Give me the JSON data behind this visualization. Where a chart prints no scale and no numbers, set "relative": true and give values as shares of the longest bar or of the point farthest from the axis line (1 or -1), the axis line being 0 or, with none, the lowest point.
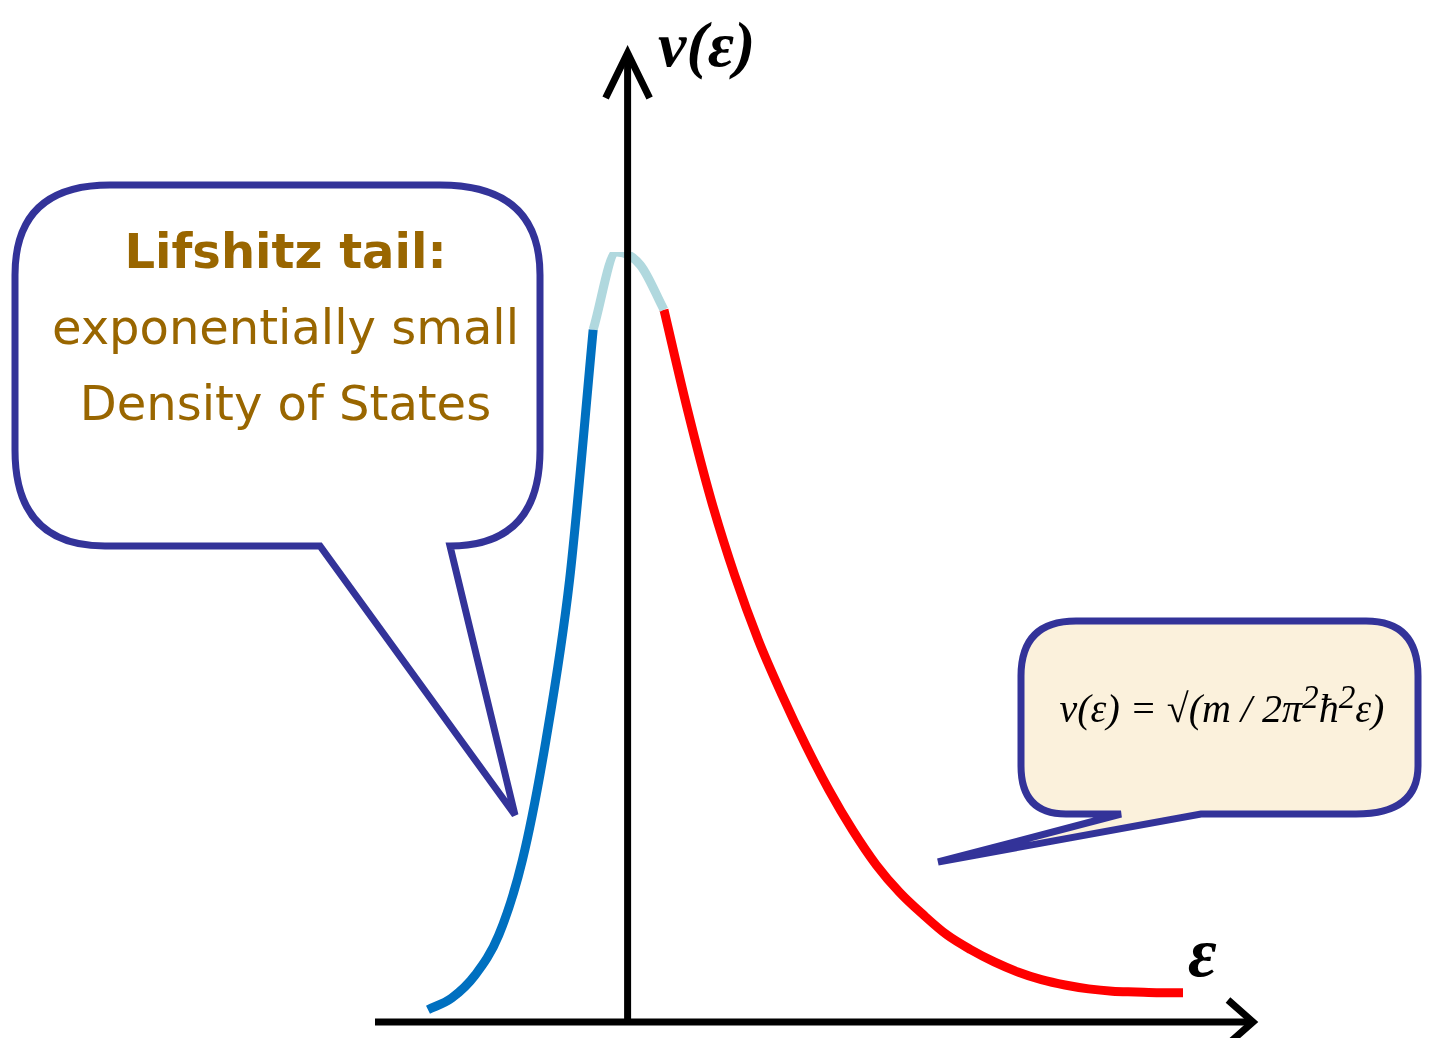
{
  "chart_data": {
    "type": "line",
    "relative": true,
    "xlabel": "ε",
    "ylabel": "ν(ε)",
    "categories": [
      null,
      null,
      null,
      null,
      null,
      null,
      null,
      null,
      null,
      null,
      null,
      null,
      null,
      null,
      null,
      null,
      null,
      null,
      null,
      null,
      null,
      null,
      null,
      null,
      null,
      null,
      null,
      null,
      null,
      null,
      null,
      null,
      null
    ],
    "series": [
      {
        "color": "#0070c0",
        "values": [
          0.016,
          0.031,
          0.061,
          0.113,
          0.21,
          0.366,
          0.574,
          0.899,
          null,
          null,
          null,
          null,
          null,
          null,
          null,
          null,
          null,
          null,
          null,
          null,
          null,
          null,
          null,
          null,
          null,
          null,
          null,
          null,
          null,
          null,
          null,
          null,
          null
        ]
      },
      {
        "color": "#b0d8de",
        "values": [
          null,
          null,
          null,
          null,
          null,
          null,
          null,
          0.899,
          1,
          0.983,
          0.925,
          null,
          null,
          null,
          null,
          null,
          null,
          null,
          null,
          null,
          null,
          null,
          null,
          null,
          null,
          null,
          null,
          null,
          null,
          null,
          null,
          null,
          null
        ]
      },
      {
        "color": "#ff0000",
        "values": [
          null,
          null,
          null,
          null,
          null,
          null,
          null,
          null,
          null,
          null,
          0.925,
          0.795,
          0.678,
          0.58,
          0.496,
          0.425,
          0.36,
          0.301,
          0.249,
          0.204,
          0.168,
          0.139,
          0.113,
          0.094,
          0.078,
          0.065,
          0.055,
          0.048,
          0.043,
          0.04,
          0.039,
          0.038,
          0.038
        ]
      }
    ],
    "annotations": [
      "Lifshitz tail:",
      "exponentially small Density of States",
      "ν(ε) = √(m / 2π$^{2}$ħ$^{2}$ε)"
    ],
    "marker": "none"
  }
}
